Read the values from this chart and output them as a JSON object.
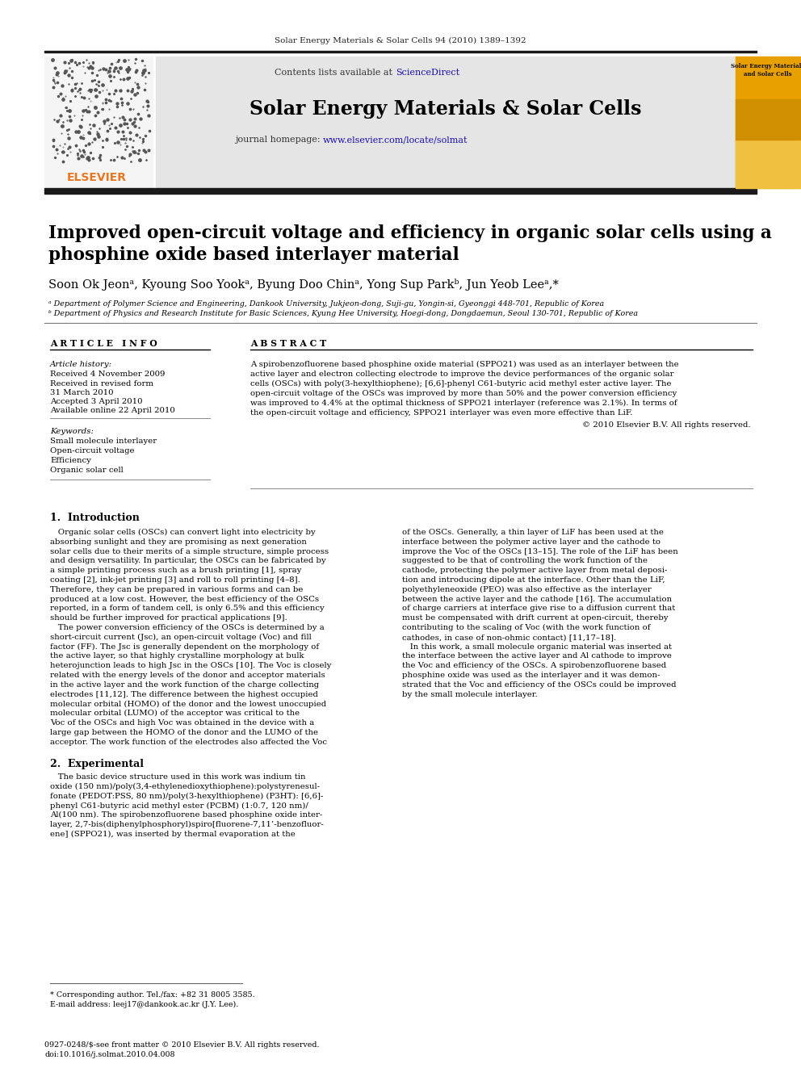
{
  "page_bg": "#ffffff",
  "journal_header_text": "Solar Energy Materials & Solar Cells 94 (2010) 1389–1392",
  "journal_name": "Solar Energy Materials & Solar Cells",
  "contents_text": "Contents lists available at ",
  "sciencedirect_text": "ScienceDirect",
  "journal_homepage_label": "journal homepage: ",
  "journal_homepage_url": "www.elsevier.com/locate/solmat",
  "header_bg": "#e8e8e8",
  "title_line1": "Improved open-circuit voltage and efficiency in organic solar cells using a",
  "title_line2": "phosphine oxide based interlayer material",
  "authors": "Soon Ok Jeonᵃ, Kyoung Soo Yookᵃ, Byung Doo Chinᵃ, Yong Sup Parkᵇ, Jun Yeob Leeᵃ,*",
  "affil_a": "ᵃ Department of Polymer Science and Engineering, Dankook University, Jukjeon-dong, Suji-gu, Yongin-si, Gyeonggi 448-701, Republic of Korea",
  "affil_b": "ᵇ Department of Physics and Research Institute for Basic Sciences, Kyung Hee University, Hoegi-dong, Dongdaemun, Seoul 130-701, Republic of Korea",
  "article_info_header": "A R T I C L E   I N F O",
  "abstract_header": "A B S T R A C T",
  "article_history_label": "Article history:",
  "received1": "Received 4 November 2009",
  "received2": "Received in revised form",
  "received2b": "31 March 2010",
  "accepted": "Accepted 3 April 2010",
  "available": "Available online 22 April 2010",
  "keywords_label": "Keywords:",
  "keywords": [
    "Small molecule interlayer",
    "Open-circuit voltage",
    "Efficiency",
    "Organic solar cell"
  ],
  "abstract_lines": [
    "A spirobenzofluorene based phosphine oxide material (SPPO21) was used as an interlayer between the",
    "active layer and electron collecting electrode to improve the device performances of the organic solar",
    "cells (OSCs) with poly(3-hexylthiophene); [6,6]-phenyl C61-butyric acid methyl ester active layer. The",
    "open-circuit voltage of the OSCs was improved by more than 50% and the power conversion efficiency",
    "was improved to 4.4% at the optimal thickness of SPPO21 interlayer (reference was 2.1%). In terms of",
    "the open-circuit voltage and efficiency, SPPO21 interlayer was even more effective than LiF."
  ],
  "copyright_text": "© 2010 Elsevier B.V. All rights reserved.",
  "section1_header": "1.  Introduction",
  "col1_lines": [
    "   Organic solar cells (OSCs) can convert light into electricity by",
    "absorbing sunlight and they are promising as next generation",
    "solar cells due to their merits of a simple structure, simple process",
    "and design versatility. In particular, the OSCs can be fabricated by",
    "a simple printing process such as a brush printing [1], spray",
    "coating [2], ink-jet printing [3] and roll to roll printing [4–8].",
    "Therefore, they can be prepared in various forms and can be",
    "produced at a low cost. However, the best efficiency of the OSCs",
    "reported, in a form of tandem cell, is only 6.5% and this efficiency",
    "should be further improved for practical applications [9].",
    "   The power conversion efficiency of the OSCs is determined by a",
    "short-circuit current (Jsc), an open-circuit voltage (Voc) and fill",
    "factor (FF). The Jsc is generally dependent on the morphology of",
    "the active layer, so that highly crystalline morphology at bulk",
    "heterojunction leads to high Jsc in the OSCs [10]. The Voc is closely",
    "related with the energy levels of the donor and acceptor materials",
    "in the active layer and the work function of the charge collecting",
    "electrodes [11,12]. The difference between the highest occupied",
    "molecular orbital (HOMO) of the donor and the lowest unoccupied",
    "molecular orbital (LUMO) of the acceptor was critical to the",
    "Voc of the OSCs and high Voc was obtained in the device with a",
    "large gap between the HOMO of the donor and the LUMO of the",
    "acceptor. The work function of the electrodes also affected the Voc"
  ],
  "col2_lines": [
    "of the OSCs. Generally, a thin layer of LiF has been used at the",
    "interface between the polymer active layer and the cathode to",
    "improve the Voc of the OSCs [13–15]. The role of the LiF has been",
    "suggested to be that of controlling the work function of the",
    "cathode, protecting the polymer active layer from metal deposi-",
    "tion and introducing dipole at the interface. Other than the LiF,",
    "polyethyleneoxide (PEO) was also effective as the interlayer",
    "between the active layer and the cathode [16]. The accumulation",
    "of charge carriers at interface give rise to a diffusion current that",
    "must be compensated with drift current at open-circuit, thereby",
    "contributing to the scaling of Voc (with the work function of",
    "cathodes, in case of non-ohmic contact) [11,17–18].",
    "   In this work, a small molecule organic material was inserted at",
    "the interface between the active layer and Al cathode to improve",
    "the Voc and efficiency of the OSCs. A spirobenzofluorene based",
    "phosphine oxide was used as the interlayer and it was demon-",
    "strated that the Voc and efficiency of the OSCs could be improved",
    "by the small molecule interlayer."
  ],
  "section2_header": "2.  Experimental",
  "exp_lines": [
    "   The basic device structure used in this work was indium tin",
    "oxide (150 nm)/poly(3,4-ethylenedioxythiophene):polystyrenesul-",
    "fonate (PEDOT:PSS, 80 nm)/poly(3-hexylthiophene) (P3HT): [6,6]-",
    "phenyl C61-butyric acid methyl ester (PCBM) (1:0.7, 120 nm)/",
    "Al(100 nm). The spirobenzofluorene based phosphine oxide inter-",
    "layer, 2,7-bis(diphenylphosphoryl)spiro[fluorene-7,11’-benzofluor-",
    "ene] (SPPO21), was inserted by thermal evaporation at the"
  ],
  "footnote_star": "* Corresponding author. Tel./fax: +82 31 8005 3585.",
  "footnote_email": "E-mail address: leej17@dankook.ac.kr (J.Y. Lee).",
  "footer_text1": "0927-0248/$-see front matter © 2010 Elsevier B.V. All rights reserved.",
  "footer_text2": "doi:10.1016/j.solmat.2010.04.008",
  "black_bar_color": "#1a1a1a",
  "blue_link_color": "#1a0dab",
  "orange_color": "#e87722",
  "cover_gold": "#c8960c",
  "cover_text": "Solar Energy Materials\nand Solar Cells"
}
